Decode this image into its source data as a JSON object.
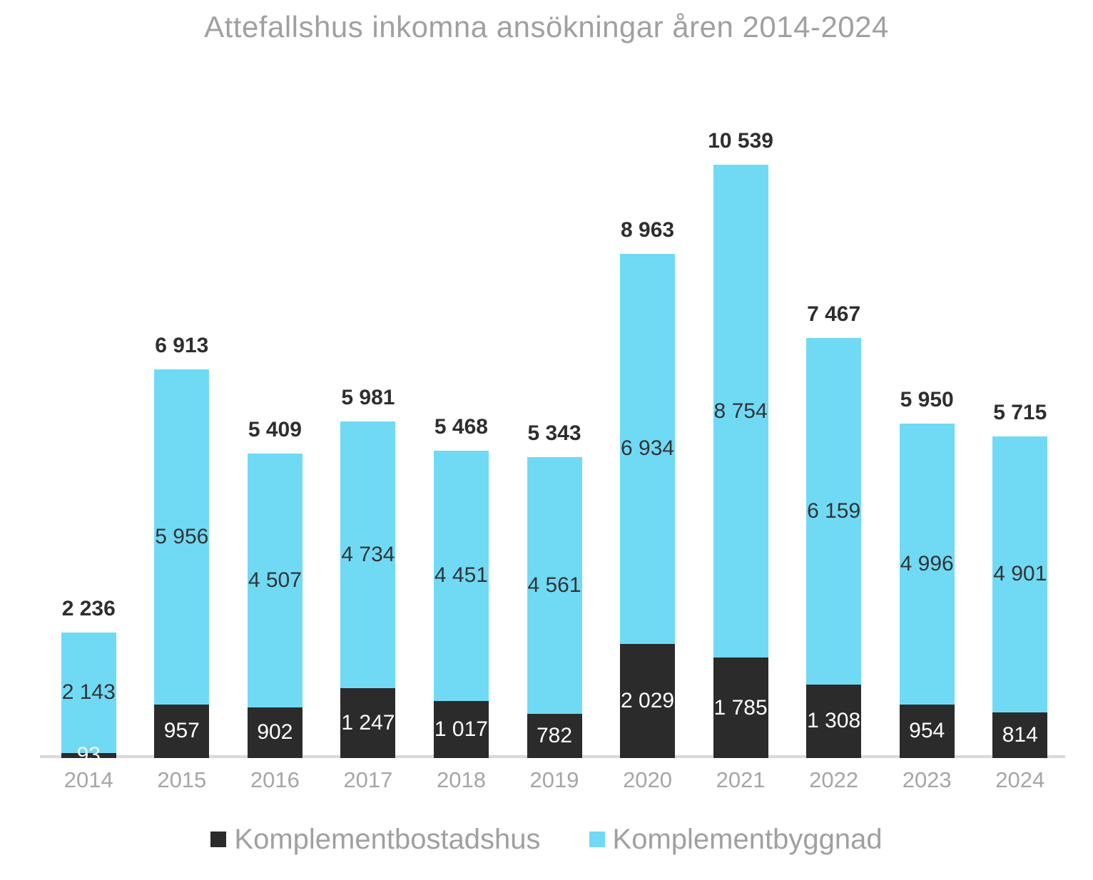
{
  "title": "Attefallshus inkomna ansökningar åren 2014-2024",
  "chart_data": {
    "type": "bar",
    "stacked": true,
    "title": "Attefallshus inkomna ansökningar åren 2014-2024",
    "categories": [
      "2014",
      "2015",
      "2016",
      "2017",
      "2018",
      "2019",
      "2020",
      "2021",
      "2022",
      "2023",
      "2024"
    ],
    "series": [
      {
        "name": "Komplementbostadshus",
        "color": "#2b2b2b",
        "label_text_color": "#ffffff",
        "values": [
          93,
          957,
          902,
          1247,
          1017,
          782,
          2029,
          1785,
          1308,
          954,
          814
        ]
      },
      {
        "name": "Komplementbyggnad",
        "color": "#70daf5",
        "label_text_color": "#333333",
        "values": [
          2143,
          5956,
          4507,
          4734,
          4451,
          4561,
          6934,
          8754,
          6159,
          4996,
          4901
        ]
      }
    ],
    "totals": [
      2236,
      6913,
      5409,
      5981,
      5468,
      5343,
      8963,
      10539,
      7467,
      5950,
      5715
    ],
    "xlabel": "",
    "ylabel": "",
    "ylim": [
      0,
      11000
    ],
    "grid": false,
    "y_axis_visible": false,
    "data_labels": "inside-segments-and-total-above",
    "number_format": "space-thousands",
    "legend_position": "bottom"
  },
  "style": {
    "title_color": "#a0a0a0",
    "axis_line_color": "#d9d9d9",
    "tick_label_color": "#a6a6a6",
    "total_label_color": "#2e2e2e",
    "legend_text_color": "#a0a0a0",
    "background": "#ffffff"
  }
}
